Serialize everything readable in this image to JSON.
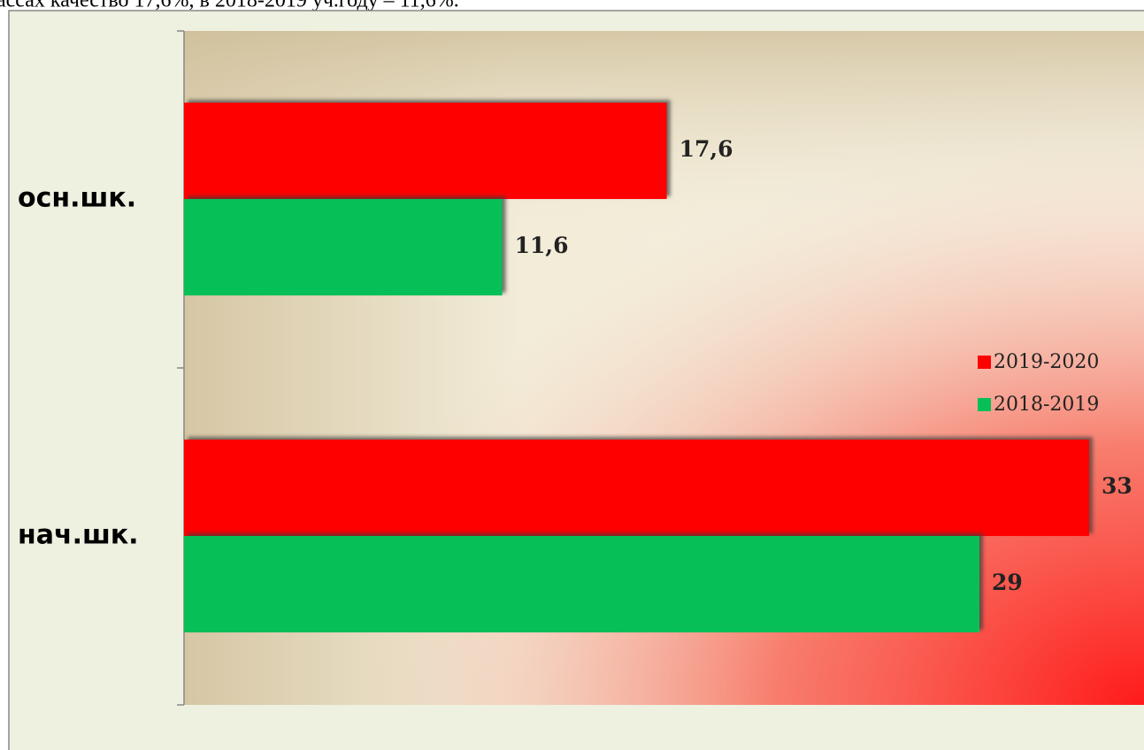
{
  "document": {
    "text": "ассах качество 17,6%, в 2018-2019 уч.году – 11,6%."
  },
  "chart_data": {
    "type": "hbar",
    "categories": [
      "осн.шк.",
      "нач.шк."
    ],
    "series": [
      {
        "name": "2019-2020",
        "color": "#ff0000",
        "values": [
          17.6,
          33
        ],
        "value_labels": [
          "17,6",
          "33"
        ]
      },
      {
        "name": "2018-2019",
        "color": "#07bf57",
        "values": [
          11.6,
          29
        ],
        "value_labels": [
          "11,6",
          "29"
        ]
      }
    ],
    "xlim": [
      0,
      35
    ],
    "legend": "right"
  }
}
